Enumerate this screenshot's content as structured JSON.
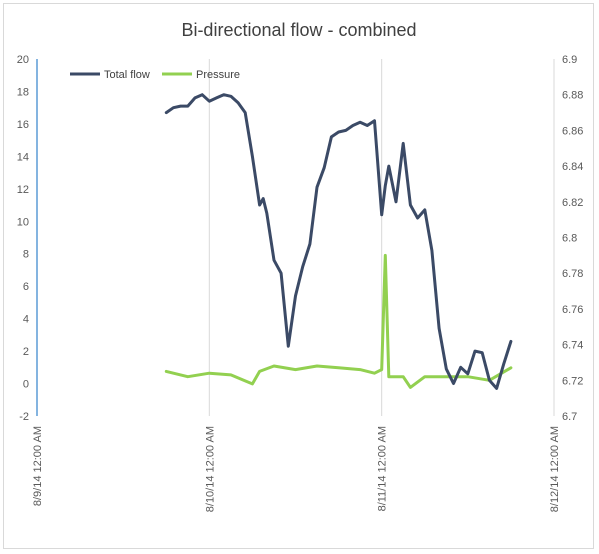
{
  "chart_data": {
    "type": "line",
    "title": "Bi-directional flow - combined",
    "legend_position": "top-left",
    "grid": {
      "x_major": true,
      "y_major": false
    },
    "x_axis": {
      "type": "date",
      "range": [
        "2014-08-09 00:00",
        "2014-08-12 00:00"
      ],
      "tick_labels": [
        "8/9/14 12:00 AM",
        "8/10/14 12:00 AM",
        "8/11/14 12:00 AM",
        "8/12/14 12:00 AM"
      ],
      "tick_values": [
        "2014-08-09 00:00",
        "2014-08-10 00:00",
        "2014-08-11 00:00",
        "2014-08-12 00:00"
      ]
    },
    "y_axis": {
      "range": [
        -2,
        20
      ],
      "tick_labels": [
        "-2",
        "0",
        "2",
        "4",
        "6",
        "8",
        "10",
        "12",
        "14",
        "16",
        "18",
        "20"
      ],
      "tick_values": [
        -2,
        0,
        2,
        4,
        6,
        8,
        10,
        12,
        14,
        16,
        18,
        20
      ]
    },
    "y2_axis": {
      "range": [
        6.7,
        6.9
      ],
      "tick_labels": [
        "6.7",
        "6.72",
        "6.74",
        "6.76",
        "6.78",
        "6.8",
        "6.82",
        "6.84",
        "6.86",
        "6.88",
        "6.9"
      ],
      "tick_values": [
        6.7,
        6.72,
        6.74,
        6.76,
        6.78,
        6.8,
        6.82,
        6.84,
        6.86,
        6.88,
        6.9
      ]
    },
    "colors": {
      "total_flow": "#3b4a66",
      "pressure": "#92d050",
      "left_axis_line": "#5b9bd5",
      "grid": "#d9d9d9",
      "border": "#bfbfbf"
    },
    "series": [
      {
        "name": "Total flow",
        "axis": "y",
        "x": [
          "2014-08-09 18:00",
          "2014-08-09 19:00",
          "2014-08-09 20:00",
          "2014-08-09 21:00",
          "2014-08-09 22:00",
          "2014-08-09 23:00",
          "2014-08-10 00:00",
          "2014-08-10 01:00",
          "2014-08-10 02:00",
          "2014-08-10 03:00",
          "2014-08-10 04:00",
          "2014-08-10 05:00",
          "2014-08-10 06:00",
          "2014-08-10 07:00",
          "2014-08-10 07:30",
          "2014-08-10 08:00",
          "2014-08-10 09:00",
          "2014-08-10 10:00",
          "2014-08-10 11:00",
          "2014-08-10 12:00",
          "2014-08-10 13:00",
          "2014-08-10 14:00",
          "2014-08-10 15:00",
          "2014-08-10 16:00",
          "2014-08-10 17:00",
          "2014-08-10 18:00",
          "2014-08-10 19:00",
          "2014-08-10 20:00",
          "2014-08-10 21:00",
          "2014-08-10 22:00",
          "2014-08-10 23:00",
          "2014-08-11 00:00",
          "2014-08-11 00:30",
          "2014-08-11 01:00",
          "2014-08-11 02:00",
          "2014-08-11 03:00",
          "2014-08-11 04:00",
          "2014-08-11 05:00",
          "2014-08-11 06:00",
          "2014-08-11 07:00",
          "2014-08-11 08:00",
          "2014-08-11 09:00",
          "2014-08-11 10:00",
          "2014-08-11 11:00",
          "2014-08-11 12:00",
          "2014-08-11 13:00",
          "2014-08-11 14:00",
          "2014-08-11 15:00",
          "2014-08-11 16:00",
          "2014-08-11 17:00",
          "2014-08-11 18:00"
        ],
        "values": [
          16.7,
          17.0,
          17.1,
          17.1,
          17.6,
          17.8,
          17.4,
          17.6,
          17.8,
          17.7,
          17.3,
          16.7,
          14.0,
          11.0,
          11.4,
          10.5,
          7.6,
          6.8,
          2.3,
          5.4,
          7.2,
          8.6,
          12.1,
          13.3,
          15.2,
          15.5,
          15.6,
          15.9,
          16.1,
          15.9,
          16.2,
          10.4,
          12.2,
          13.4,
          11.2,
          14.8,
          11.0,
          10.2,
          10.7,
          8.2,
          3.4,
          0.9,
          0.0,
          1.0,
          0.6,
          2.0,
          1.9,
          0.2,
          -0.3,
          1.2,
          2.6
        ]
      },
      {
        "name": "Pressure",
        "axis": "y2",
        "x": [
          "2014-08-09 18:00",
          "2014-08-09 21:00",
          "2014-08-10 00:00",
          "2014-08-10 03:00",
          "2014-08-10 06:00",
          "2014-08-10 07:00",
          "2014-08-10 09:00",
          "2014-08-10 12:00",
          "2014-08-10 15:00",
          "2014-08-10 18:00",
          "2014-08-10 21:00",
          "2014-08-10 23:00",
          "2014-08-11 00:00",
          "2014-08-11 00:30",
          "2014-08-11 01:00",
          "2014-08-11 03:00",
          "2014-08-11 04:00",
          "2014-08-11 06:00",
          "2014-08-11 09:00",
          "2014-08-11 12:00",
          "2014-08-11 15:00",
          "2014-08-11 18:00"
        ],
        "values": [
          6.725,
          6.722,
          6.724,
          6.723,
          6.718,
          6.725,
          6.728,
          6.726,
          6.728,
          6.727,
          6.726,
          6.724,
          6.726,
          6.79,
          6.722,
          6.722,
          6.716,
          6.722,
          6.722,
          6.722,
          6.72,
          6.727
        ]
      }
    ]
  }
}
